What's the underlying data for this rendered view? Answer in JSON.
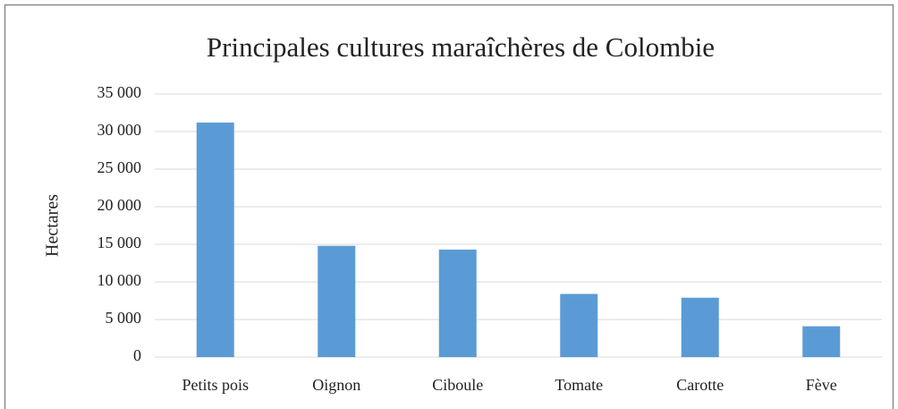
{
  "chart_data": {
    "type": "bar",
    "title": "Principales cultures maraîchères de Colombie",
    "y_label": "Hectares",
    "categories": [
      "Petits pois",
      "Oignon",
      "Ciboule",
      "Tomate",
      "Carotte",
      "Fève"
    ],
    "values": [
      31200,
      14800,
      14300,
      8400,
      7900,
      4100
    ],
    "color": "#5b9bd5",
    "ylim": [
      0,
      35000
    ],
    "yticks": [
      0,
      {
        "value": 5000,
        "label": "5 000"
      },
      {
        "value": 10000,
        "label": "10 000"
      },
      {
        "value": 15000,
        "label": "15 000"
      },
      {
        "value": 20000,
        "label": "20 000"
      },
      {
        "value": 25000,
        "label": "25 000"
      },
      {
        "value": 30000,
        "label": "30 000"
      },
      {
        "value": 35000,
        "label": "35 000"
      }
    ],
    "grid": true
  }
}
